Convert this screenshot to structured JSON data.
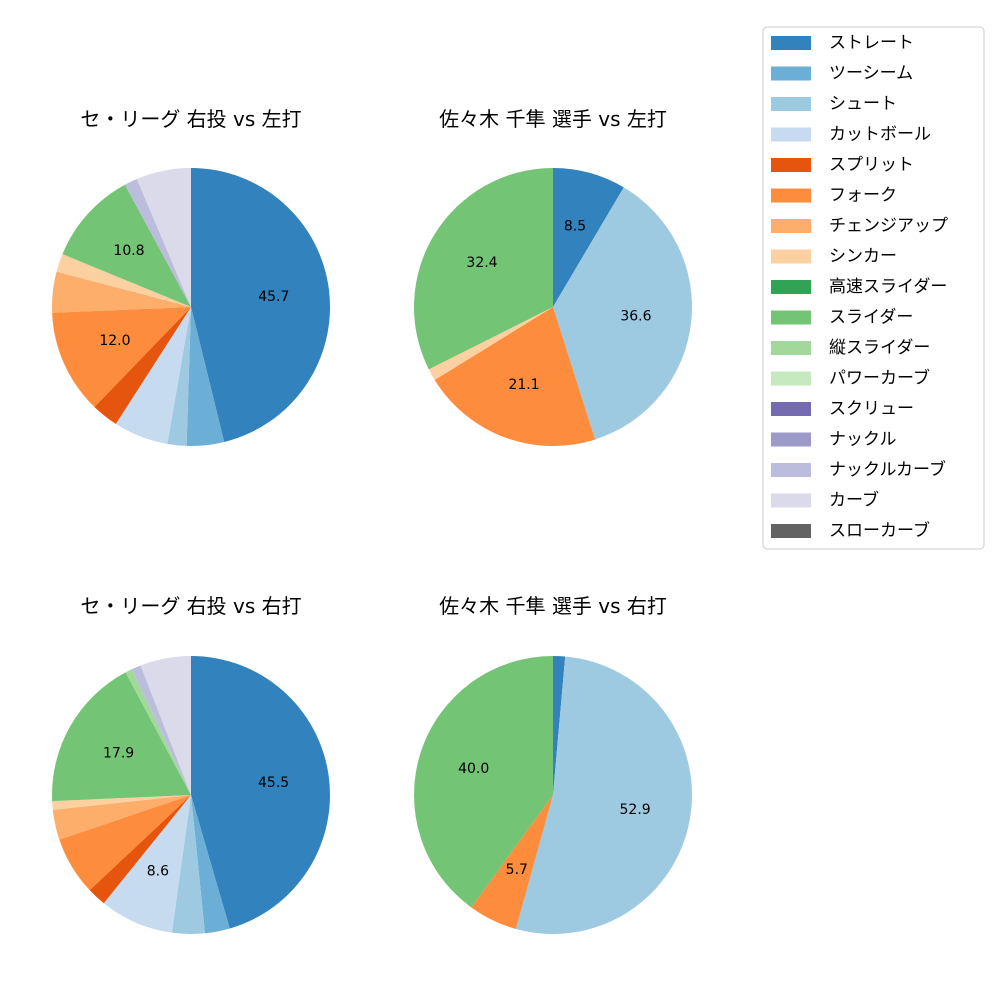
{
  "legend": {
    "entries": [
      {
        "name": "ストレート",
        "color": "#3182bd"
      },
      {
        "name": "ツーシーム",
        "color": "#6baed6"
      },
      {
        "name": "シュート",
        "color": "#9ecae1"
      },
      {
        "name": "カットボール",
        "color": "#c6dbef"
      },
      {
        "name": "スプリット",
        "color": "#e6550d"
      },
      {
        "name": "フォーク",
        "color": "#fd8d3c"
      },
      {
        "name": "チェンジアップ",
        "color": "#fdae6b"
      },
      {
        "name": "シンカー",
        "color": "#fdd0a2"
      },
      {
        "name": "高速スライダー",
        "color": "#31a354"
      },
      {
        "name": "スライダー",
        "color": "#74c476"
      },
      {
        "name": "縦スライダー",
        "color": "#a1d99b"
      },
      {
        "name": "パワーカーブ",
        "color": "#c7e9c0"
      },
      {
        "name": "スクリュー",
        "color": "#756bb1"
      },
      {
        "name": "ナックル",
        "color": "#9e9ac8"
      },
      {
        "name": "ナックルカーブ",
        "color": "#bcbddc"
      },
      {
        "name": "カーブ",
        "color": "#dadaeb"
      },
      {
        "name": "スローカーブ",
        "color": "#636363"
      }
    ]
  },
  "chart_data": [
    {
      "type": "pie",
      "title": "セ・リーグ 右投 vs 左打",
      "slices": [
        {
          "name": "ストレート",
          "value": 45.7,
          "label": "45.7"
        },
        {
          "name": "ツーシーム",
          "value": 4.3,
          "label": ""
        },
        {
          "name": "シュート",
          "value": 2.2,
          "label": ""
        },
        {
          "name": "カットボール",
          "value": 6.3,
          "label": ""
        },
        {
          "name": "スプリット",
          "value": 3.1,
          "label": ""
        },
        {
          "name": "フォーク",
          "value": 12.0,
          "label": "12.0"
        },
        {
          "name": "チェンジアップ",
          "value": 4.7,
          "label": ""
        },
        {
          "name": "シンカー",
          "value": 2.1,
          "label": ""
        },
        {
          "name": "スライダー",
          "value": 10.8,
          "label": "10.8"
        },
        {
          "name": "ナックルカーブ",
          "value": 1.5,
          "label": ""
        },
        {
          "name": "カーブ",
          "value": 6.3,
          "label": ""
        }
      ]
    },
    {
      "type": "pie",
      "title": "佐々木 千隼 選手 vs 左打",
      "slices": [
        {
          "name": "ストレート",
          "value": 8.5,
          "label": "8.5"
        },
        {
          "name": "シュート",
          "value": 36.6,
          "label": "36.6"
        },
        {
          "name": "フォーク",
          "value": 21.1,
          "label": "21.1"
        },
        {
          "name": "シンカー",
          "value": 1.4,
          "label": ""
        },
        {
          "name": "スライダー",
          "value": 32.4,
          "label": "32.4"
        }
      ]
    },
    {
      "type": "pie",
      "title": "セ・リーグ 右投 vs 右打",
      "slices": [
        {
          "name": "ストレート",
          "value": 45.5,
          "label": "45.5"
        },
        {
          "name": "ツーシーム",
          "value": 2.9,
          "label": ""
        },
        {
          "name": "シュート",
          "value": 3.8,
          "label": ""
        },
        {
          "name": "カットボール",
          "value": 8.6,
          "label": "8.6"
        },
        {
          "name": "スプリット",
          "value": 2.2,
          "label": ""
        },
        {
          "name": "フォーク",
          "value": 6.8,
          "label": ""
        },
        {
          "name": "チェンジアップ",
          "value": 3.5,
          "label": ""
        },
        {
          "name": "シンカー",
          "value": 1.0,
          "label": ""
        },
        {
          "name": "スライダー",
          "value": 17.9,
          "label": "17.9"
        },
        {
          "name": "縦スライダー",
          "value": 0.8,
          "label": ""
        },
        {
          "name": "ナックルカーブ",
          "value": 1.1,
          "label": ""
        },
        {
          "name": "カーブ",
          "value": 5.9,
          "label": ""
        }
      ]
    },
    {
      "type": "pie",
      "title": "佐々木 千隼 選手 vs 右打",
      "slices": [
        {
          "name": "ストレート",
          "value": 1.4,
          "label": ""
        },
        {
          "name": "シュート",
          "value": 52.9,
          "label": "52.9"
        },
        {
          "name": "フォーク",
          "value": 5.7,
          "label": "5.7"
        },
        {
          "name": "スライダー",
          "value": 40.0,
          "label": "40.0"
        }
      ]
    }
  ]
}
